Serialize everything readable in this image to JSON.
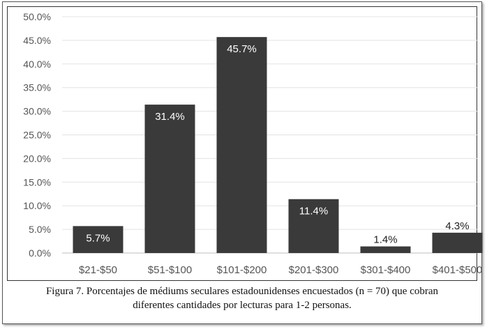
{
  "chart_data": {
    "type": "bar",
    "categories": [
      "$21-$50",
      "$51-$100",
      "$101-$200",
      "$201-$300",
      "$301-$400",
      "$401-$500"
    ],
    "values": [
      5.7,
      31.4,
      45.7,
      11.4,
      1.4,
      4.3
    ],
    "value_labels": [
      "5.7%",
      "31.4%",
      "45.7%",
      "11.4%",
      "1.4%",
      "4.3%"
    ],
    "y_ticks": [
      "0.0%",
      "5.0%",
      "10.0%",
      "15.0%",
      "20.0%",
      "25.0%",
      "30.0%",
      "35.0%",
      "40.0%",
      "45.0%",
      "50.0%"
    ],
    "ylim": [
      0,
      50
    ],
    "grid": true,
    "bar_color": "#3a3a3a",
    "title": "",
    "xlabel": "",
    "ylabel": ""
  },
  "caption": {
    "line1": "Figura 7. Porcentajes de médiums seculares estadounidenses encuestados (n = 70) que cobran",
    "line2": "diferentes cantidades por lecturas para 1-2 personas."
  }
}
